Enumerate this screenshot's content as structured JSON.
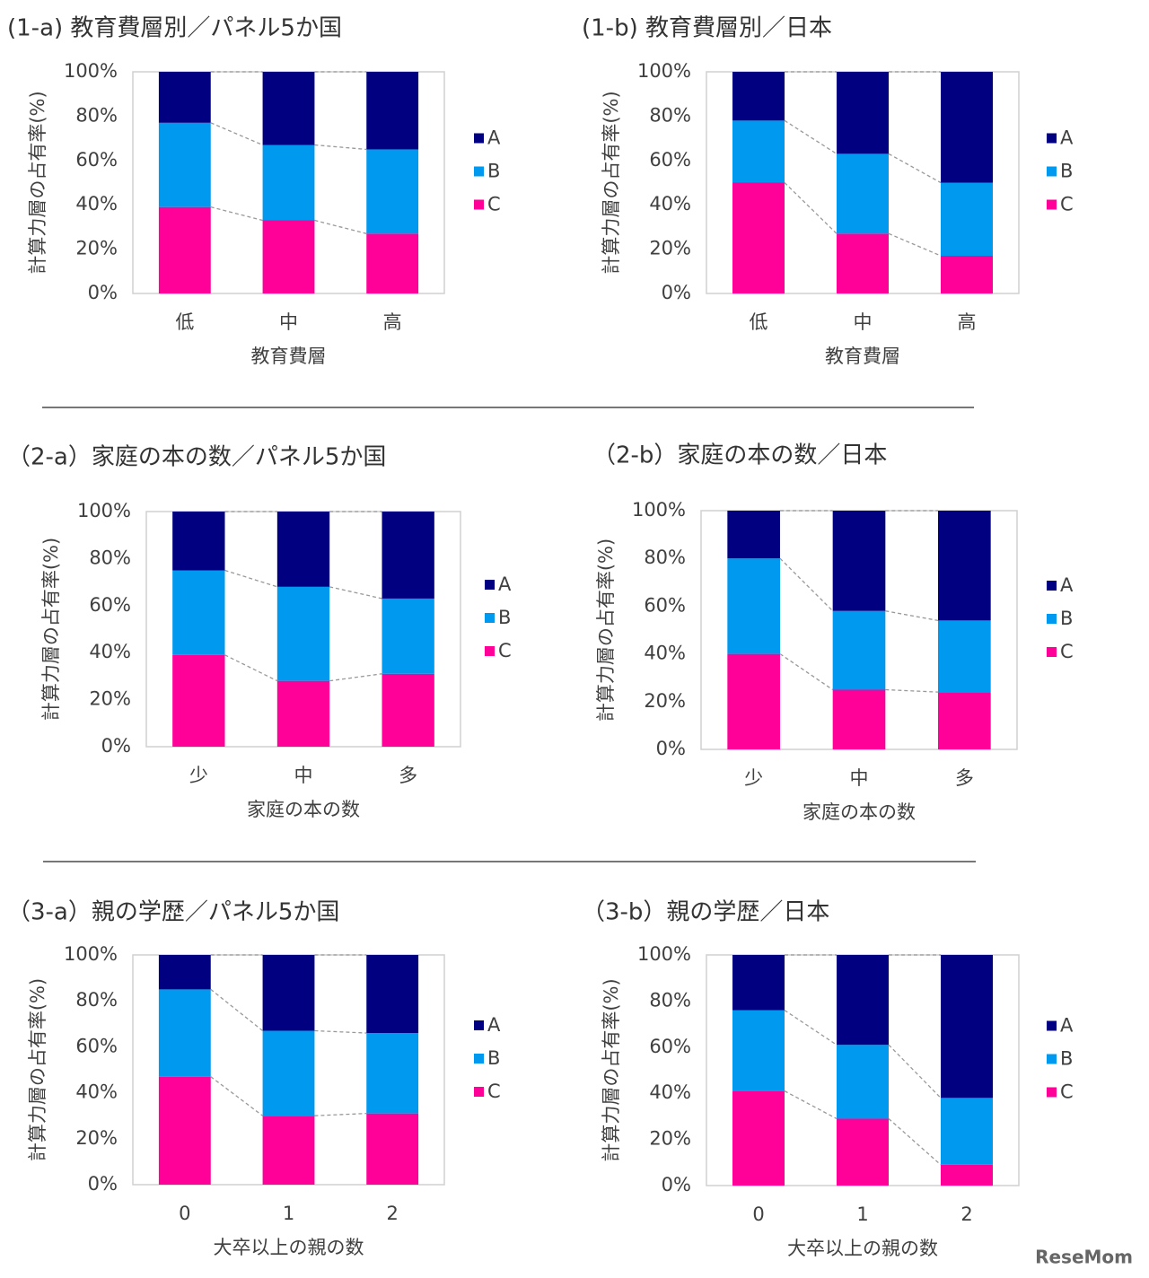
{
  "chart_data": [
    {
      "type": "bar",
      "stacked": true,
      "title": "(1-a) 教育費層別／パネル5か国",
      "xlabel": "教育費層",
      "ylabel": "計算力層の占有率(%)",
      "categories": [
        "低",
        "中",
        "高"
      ],
      "series": [
        {
          "name": "A",
          "color": "#000080",
          "values": [
            23,
            33,
            35
          ]
        },
        {
          "name": "B",
          "color": "#0099f0",
          "values": [
            38,
            34,
            38
          ]
        },
        {
          "name": "C",
          "color": "#ff0099",
          "values": [
            39,
            33,
            27
          ]
        }
      ],
      "ylim": [
        0,
        100
      ],
      "yticks": [
        {
          "value": 0,
          "label": "0%"
        },
        {
          "value": 20,
          "label": "20%"
        },
        {
          "value": 40,
          "label": "40%"
        },
        {
          "value": 60,
          "label": "60%"
        },
        {
          "value": 80,
          "label": "80%"
        },
        {
          "value": 100,
          "label": "100%"
        }
      ],
      "grid": false,
      "legend": "right"
    },
    {
      "type": "bar",
      "stacked": true,
      "title": "(1-b) 教育費層別／日本",
      "xlabel": "教育費層",
      "ylabel": "計算力層の占有率(%)",
      "categories": [
        "低",
        "中",
        "高"
      ],
      "series": [
        {
          "name": "A",
          "color": "#000080",
          "values": [
            22,
            37,
            50
          ]
        },
        {
          "name": "B",
          "color": "#0099f0",
          "values": [
            28,
            36,
            33
          ]
        },
        {
          "name": "C",
          "color": "#ff0099",
          "values": [
            50,
            27,
            17
          ]
        }
      ],
      "ylim": [
        0,
        100
      ],
      "yticks": [
        {
          "value": 0,
          "label": "0%"
        },
        {
          "value": 20,
          "label": "20%"
        },
        {
          "value": 40,
          "label": "40%"
        },
        {
          "value": 60,
          "label": "60%"
        },
        {
          "value": 80,
          "label": "80%"
        },
        {
          "value": 100,
          "label": "100%"
        }
      ],
      "grid": false,
      "legend": "right"
    },
    {
      "type": "bar",
      "stacked": true,
      "title": "（2-a）家庭の本の数／パネル5か国",
      "xlabel": "家庭の本の数",
      "ylabel": "計算力層の占有率(%)",
      "categories": [
        "少",
        "中",
        "多"
      ],
      "series": [
        {
          "name": "A",
          "color": "#000080",
          "values": [
            25,
            32,
            37
          ]
        },
        {
          "name": "B",
          "color": "#0099f0",
          "values": [
            36,
            40,
            32
          ]
        },
        {
          "name": "C",
          "color": "#ff0099",
          "values": [
            39,
            28,
            31
          ]
        }
      ],
      "ylim": [
        0,
        100
      ],
      "yticks": [
        {
          "value": 0,
          "label": "0%"
        },
        {
          "value": 20,
          "label": "20%"
        },
        {
          "value": 40,
          "label": "40%"
        },
        {
          "value": 60,
          "label": "60%"
        },
        {
          "value": 80,
          "label": "80%"
        },
        {
          "value": 100,
          "label": "100%"
        }
      ],
      "grid": false,
      "legend": "right"
    },
    {
      "type": "bar",
      "stacked": true,
      "title": "（2-b）家庭の本の数／日本",
      "xlabel": "家庭の本の数",
      "ylabel": "計算力層の占有率(%)",
      "categories": [
        "少",
        "中",
        "多"
      ],
      "series": [
        {
          "name": "A",
          "color": "#000080",
          "values": [
            20,
            42,
            46
          ]
        },
        {
          "name": "B",
          "color": "#0099f0",
          "values": [
            40,
            33,
            30
          ]
        },
        {
          "name": "C",
          "color": "#ff0099",
          "values": [
            40,
            25,
            24
          ]
        }
      ],
      "ylim": [
        0,
        100
      ],
      "yticks": [
        {
          "value": 0,
          "label": "0%"
        },
        {
          "value": 20,
          "label": "20%"
        },
        {
          "value": 40,
          "label": "40%"
        },
        {
          "value": 60,
          "label": "60%"
        },
        {
          "value": 80,
          "label": "80%"
        },
        {
          "value": 100,
          "label": "100%"
        }
      ],
      "grid": false,
      "legend": "right"
    },
    {
      "type": "bar",
      "stacked": true,
      "title": "（3-a）親の学歴／パネル5か国",
      "xlabel": "大卒以上の親の数",
      "ylabel": "計算力層の占有率(%)",
      "categories": [
        "0",
        "1",
        "2"
      ],
      "series": [
        {
          "name": "A",
          "color": "#000080",
          "values": [
            15,
            33,
            34
          ]
        },
        {
          "name": "B",
          "color": "#0099f0",
          "values": [
            38,
            37,
            35
          ]
        },
        {
          "name": "C",
          "color": "#ff0099",
          "values": [
            47,
            30,
            31
          ]
        }
      ],
      "ylim": [
        0,
        100
      ],
      "yticks": [
        {
          "value": 0,
          "label": "0%"
        },
        {
          "value": 20,
          "label": "20%"
        },
        {
          "value": 40,
          "label": "40%"
        },
        {
          "value": 60,
          "label": "60%"
        },
        {
          "value": 80,
          "label": "80%"
        },
        {
          "value": 100,
          "label": "100%"
        }
      ],
      "grid": false,
      "legend": "right"
    },
    {
      "type": "bar",
      "stacked": true,
      "title": "（3-b）親の学歴／日本",
      "xlabel": "大卒以上の親の数",
      "ylabel": "計算力層の占有率(%)",
      "categories": [
        "0",
        "1",
        "2"
      ],
      "series": [
        {
          "name": "A",
          "color": "#000080",
          "values": [
            24,
            39,
            62
          ]
        },
        {
          "name": "B",
          "color": "#0099f0",
          "values": [
            35,
            32,
            29
          ]
        },
        {
          "name": "C",
          "color": "#ff0099",
          "values": [
            41,
            29,
            9
          ]
        }
      ],
      "ylim": [
        0,
        100
      ],
      "yticks": [
        {
          "value": 0,
          "label": "0%"
        },
        {
          "value": 20,
          "label": "20%"
        },
        {
          "value": 40,
          "label": "40%"
        },
        {
          "value": 60,
          "label": "60%"
        },
        {
          "value": 80,
          "label": "80%"
        },
        {
          "value": 100,
          "label": "100%"
        }
      ],
      "grid": false,
      "legend": "right"
    }
  ],
  "watermark": "ReseMom"
}
